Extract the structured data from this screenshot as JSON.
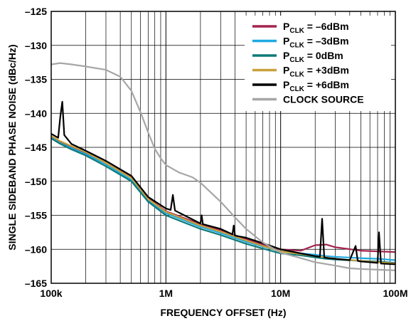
{
  "chart_data": {
    "type": "line",
    "title": "",
    "xlabel": "FREQUENCY OFFSET (Hz)",
    "ylabel": "SINGLE SIDEBAND PHASE NOISE (dBc/Hz)",
    "x_scale": "log",
    "xlim": [
      100000,
      100000000
    ],
    "ylim": [
      -165,
      -125
    ],
    "x_ticks": [
      100000,
      1000000,
      10000000,
      100000000
    ],
    "x_tick_labels": [
      "100k",
      "1M",
      "10M",
      "100M"
    ],
    "y_ticks": [
      -125,
      -130,
      -135,
      -140,
      -145,
      -150,
      -155,
      -160,
      -165
    ],
    "y_tick_labels": [
      "–125",
      "–130",
      "–135",
      "–140",
      "–145",
      "–150",
      "–155",
      "–160",
      "–165"
    ],
    "grid": true,
    "legend_position": "top-right",
    "series": [
      {
        "name_prefix": "P",
        "name_sub": "CLK",
        "name_suffix": " = –6dBm",
        "color": "#a3244f",
        "x": [
          100000,
          120000,
          150000,
          200000,
          300000,
          500000,
          700000,
          1000000,
          2000000,
          3000000,
          5000000,
          7000000,
          10000000,
          15000000,
          20000000,
          25000000,
          30000000,
          50000000,
          70000000,
          100000000
        ],
        "y": [
          -143.4,
          -144.2,
          -144.9,
          -145.8,
          -147.3,
          -149.4,
          -152.5,
          -154.4,
          -156.3,
          -157.2,
          -158.5,
          -159.3,
          -160.0,
          -160.2,
          -159.4,
          -159.3,
          -159.7,
          -160.2,
          -160.3,
          -160.4
        ]
      },
      {
        "name_prefix": "P",
        "name_sub": "CLK",
        "name_suffix": " = –3dBm",
        "color": "#1ea9e1",
        "x": [
          100000,
          120000,
          150000,
          200000,
          300000,
          500000,
          700000,
          1000000,
          2000000,
          3000000,
          5000000,
          7000000,
          10000000,
          15000000,
          20000000,
          25000000,
          30000000,
          50000000,
          70000000,
          100000000
        ],
        "y": [
          -143.6,
          -144.4,
          -145.1,
          -146.0,
          -147.5,
          -149.8,
          -152.8,
          -154.7,
          -156.7,
          -157.6,
          -158.9,
          -159.6,
          -160.3,
          -160.6,
          -160.8,
          -161.0,
          -161.1,
          -161.3,
          -161.4,
          -161.6
        ]
      },
      {
        "name_prefix": "P",
        "name_sub": "CLK",
        "name_suffix": " = 0dBm",
        "color": "#0d7a7a",
        "x": [
          100000,
          120000,
          150000,
          200000,
          300000,
          500000,
          700000,
          1000000,
          2000000,
          3000000,
          5000000,
          7000000,
          10000000,
          15000000,
          20000000,
          25000000,
          30000000,
          50000000,
          70000000,
          100000000
        ],
        "y": [
          -143.7,
          -144.5,
          -145.3,
          -146.2,
          -147.8,
          -150.0,
          -153.0,
          -155.0,
          -157.0,
          -157.9,
          -159.2,
          -159.9,
          -160.6,
          -160.9,
          -161.2,
          -161.4,
          -161.5,
          -161.7,
          -161.8,
          -162.0
        ]
      },
      {
        "name_prefix": "P",
        "name_sub": "CLK",
        "name_suffix": " = +3dBm",
        "color": "#c9a03d",
        "x": [
          100000,
          120000,
          150000,
          200000,
          300000,
          500000,
          700000,
          1000000,
          2000000,
          3000000,
          5000000,
          7000000,
          10000000,
          15000000,
          20000000,
          25000000,
          30000000,
          50000000,
          70000000,
          100000000
        ],
        "y": [
          -143.3,
          -144.1,
          -144.8,
          -145.7,
          -147.3,
          -149.5,
          -152.6,
          -154.5,
          -156.5,
          -157.4,
          -158.7,
          -159.5,
          -160.3,
          -160.7,
          -161.0,
          -161.2,
          -161.4,
          -161.7,
          -161.9,
          -162.1
        ]
      },
      {
        "name_prefix": "P",
        "name_sub": "CLK",
        "name_suffix": " = +6dBm",
        "color": "#000000",
        "x": [
          100000,
          115000,
          120000,
          125000,
          130000,
          150000,
          200000,
          300000,
          500000,
          700000,
          1000000,
          1100000,
          1150000,
          1200000,
          1300000,
          2000000,
          2050000,
          2100000,
          3000000,
          3800000,
          3900000,
          4000000,
          5000000,
          7000000,
          10000000,
          15000000,
          20000000,
          22000000,
          23000000,
          24000000,
          26000000,
          30000000,
          40000000,
          45000000,
          47000000,
          50000000,
          60000000,
          70000000,
          72000000,
          75000000,
          100000000
        ],
        "y": [
          -143.0,
          -143.6,
          -140.5,
          -138.3,
          -143.2,
          -144.5,
          -145.5,
          -147.0,
          -149.2,
          -152.3,
          -154.0,
          -154.2,
          -152.0,
          -154.3,
          -154.6,
          -156.2,
          -155.0,
          -156.3,
          -157.0,
          -157.8,
          -156.5,
          -158.0,
          -158.3,
          -159.1,
          -160.0,
          -160.6,
          -161.0,
          -161.1,
          -155.5,
          -161.2,
          -161.3,
          -161.4,
          -161.6,
          -159.5,
          -161.7,
          -161.8,
          -161.9,
          -162.0,
          -157.5,
          -162.1,
          -162.2
        ]
      },
      {
        "name_prefix": "",
        "name_sub": "",
        "name_suffix": "CLOCK SOURCE",
        "color": "#a6a6a6",
        "x": [
          100000,
          120000,
          150000,
          200000,
          300000,
          400000,
          500000,
          600000,
          700000,
          800000,
          900000,
          1000000,
          1300000,
          1700000,
          2000000,
          3000000,
          4000000,
          5000000,
          7000000,
          10000000,
          15000000,
          20000000,
          30000000,
          40000000,
          50000000,
          70000000,
          100000000
        ],
        "y": [
          -132.8,
          -132.6,
          -132.8,
          -133.1,
          -133.6,
          -134.6,
          -136.7,
          -139.8,
          -142.8,
          -145.2,
          -146.6,
          -147.6,
          -148.7,
          -149.4,
          -150.2,
          -153.0,
          -155.3,
          -157.0,
          -159.0,
          -160.5,
          -161.3,
          -161.9,
          -162.4,
          -162.8,
          -162.9,
          -163.0,
          -163.1
        ]
      }
    ]
  }
}
